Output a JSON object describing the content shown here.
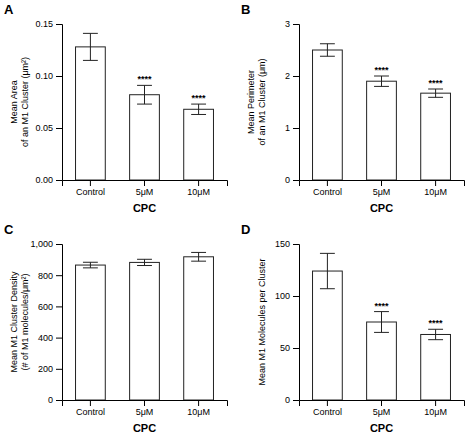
{
  "chart_data": [
    {
      "type": "bar",
      "title": "A",
      "xlabel": "CPC",
      "ylabel": "Mean Area\nof an M1 Cluster (μm²)",
      "categories": [
        "Control",
        "5μM",
        "10μM"
      ],
      "values": [
        0.128,
        0.082,
        0.068
      ],
      "errors": [
        0.013,
        0.009,
        0.005
      ],
      "annotations": [
        null,
        "****",
        "****"
      ],
      "color": "#ffffff",
      "ylim": [
        0,
        0.15
      ],
      "yticks": [
        {
          "value": 0.0,
          "label": "0.00"
        },
        {
          "value": 0.05,
          "label": "0.05"
        },
        {
          "value": 0.1,
          "label": "0.10"
        },
        {
          "value": 0.15,
          "label": "0.15"
        }
      ],
      "grid": false
    },
    {
      "type": "bar",
      "title": "B",
      "xlabel": "CPC",
      "ylabel": "Mean Perimeter\nof an M1 Cluster (μm)",
      "categories": [
        "Control",
        "5μM",
        "10μM"
      ],
      "values": [
        2.5,
        1.9,
        1.67
      ],
      "errors": [
        0.12,
        0.1,
        0.08
      ],
      "annotations": [
        null,
        "****",
        "****"
      ],
      "color": "#ffffff",
      "ylim": [
        0,
        3
      ],
      "yticks": [
        0,
        1,
        2,
        3
      ],
      "grid": false
    },
    {
      "type": "bar",
      "title": "C",
      "xlabel": "CPC",
      "ylabel": "Mean M1 Cluster Density\n(# of M1 molecules/μm²)",
      "categories": [
        "Control",
        "5μM",
        "10μM"
      ],
      "values": [
        865,
        882,
        918
      ],
      "errors": [
        18,
        20,
        28
      ],
      "color": "#ffffff",
      "ylim": [
        0,
        1000
      ],
      "yticks": [
        0,
        200,
        400,
        600,
        800,
        {
          "value": 1000,
          "label": "1,000"
        }
      ],
      "grid": false
    },
    {
      "type": "bar",
      "title": "D",
      "xlabel": "CPC",
      "ylabel": "Mean M1 Molecules per Cluster",
      "categories": [
        "Control",
        "5μM",
        "10μM"
      ],
      "values": [
        124,
        75,
        63
      ],
      "errors": [
        17,
        10,
        5
      ],
      "annotations": [
        null,
        "****",
        "****"
      ],
      "color": "#ffffff",
      "ylim": [
        0,
        150
      ],
      "yticks": [
        0,
        50,
        100,
        150
      ],
      "grid": false
    }
  ]
}
